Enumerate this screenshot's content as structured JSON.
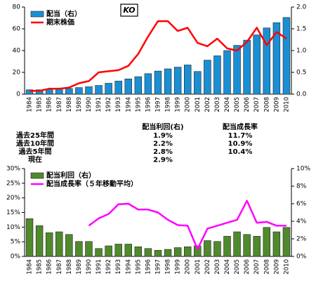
{
  "chart_data": [
    {
      "type": "bar",
      "title": "KO",
      "categories": [
        "1984",
        "1985",
        "1986",
        "1987",
        "1988",
        "1989",
        "1990",
        "1991",
        "1992",
        "1993",
        "1994",
        "1995",
        "1996",
        "1997",
        "1998",
        "1999",
        "2000",
        "2001",
        "2002",
        "2003",
        "2004",
        "2005",
        "2006",
        "2007",
        "2008",
        "2009",
        "2010"
      ],
      "series": [
        {
          "name": "配当（右）",
          "type": "bar",
          "axis": "y2",
          "color": "#1b8fd3",
          "values": [
            0.1,
            0.1,
            0.11,
            0.12,
            0.13,
            0.15,
            0.17,
            0.2,
            0.25,
            0.3,
            0.35,
            0.4,
            0.47,
            0.53,
            0.58,
            0.62,
            0.67,
            0.52,
            0.78,
            0.88,
            1.0,
            1.12,
            1.24,
            1.36,
            1.52,
            1.64,
            1.76
          ]
        },
        {
          "name": "期末株価",
          "type": "line",
          "color": "#ff0000",
          "values": [
            3,
            3,
            5,
            5,
            6,
            10,
            12,
            20,
            21,
            22,
            26,
            37,
            53,
            67,
            67,
            58,
            61,
            47,
            44,
            51,
            42,
            40,
            48,
            61,
            45,
            57,
            51
          ]
        }
      ],
      "ylim": [
        0,
        80
      ],
      "yticks": [
        0,
        20,
        40,
        60,
        80
      ],
      "y2lim": [
        0,
        2
      ],
      "y2ticks": [
        {
          "value": 0,
          "label": "0.0"
        },
        {
          "value": 0.5,
          "label": "0.5"
        },
        {
          "value": 1,
          "label": "1.0"
        },
        {
          "value": 1.5,
          "label": "1.5"
        },
        {
          "value": 2,
          "label": "2.0"
        }
      ],
      "legend": "upper left"
    },
    {
      "type": "bar",
      "categories": [
        "1984",
        "1985",
        "1986",
        "1987",
        "1988",
        "1989",
        "1990",
        "1991",
        "1992",
        "1993",
        "1994",
        "1995",
        "1996",
        "1997",
        "1998",
        "1999",
        "2000",
        "2001",
        "2002",
        "2003",
        "2004",
        "2005",
        "2006",
        "2007",
        "2008",
        "2009",
        "2010"
      ],
      "series": [
        {
          "name": "配当利回（右）",
          "type": "bar",
          "axis": "y2",
          "color": "#4f8a2c",
          "values": [
            4.3,
            3.5,
            2.7,
            2.8,
            2.5,
            1.7,
            1.7,
            0.9,
            1.2,
            1.4,
            1.4,
            1.1,
            0.9,
            0.7,
            0.8,
            1.0,
            1.1,
            1.2,
            1.8,
            1.7,
            2.3,
            2.8,
            2.5,
            2.3,
            3.3,
            2.8,
            3.3
          ]
        },
        {
          "name": "配当成長率（５年移動平均）",
          "type": "line",
          "color": "#ff00ff",
          "values": [
            null,
            null,
            null,
            null,
            null,
            null,
            10.5,
            13,
            14.5,
            17.8,
            18,
            16,
            16,
            15,
            12.5,
            10.7,
            10.5,
            2.5,
            9.5,
            10.5,
            11.5,
            12.5,
            19,
            11.5,
            11.8,
            10.5,
            10.5
          ]
        }
      ],
      "ylim": [
        0,
        30
      ],
      "yticks": [
        {
          "value": 0,
          "label": "0%"
        },
        {
          "value": 5,
          "label": "5%"
        },
        {
          "value": 10,
          "label": "10%"
        },
        {
          "value": 15,
          "label": "15%"
        },
        {
          "value": 20,
          "label": "20%"
        },
        {
          "value": 25,
          "label": "25%"
        },
        {
          "value": 30,
          "label": "30%"
        }
      ],
      "y2lim": [
        0,
        10
      ],
      "y2ticks": [
        {
          "value": 0,
          "label": "0%"
        },
        {
          "value": 2,
          "label": "2%"
        },
        {
          "value": 4,
          "label": "4%"
        },
        {
          "value": 6,
          "label": "6%"
        },
        {
          "value": 8,
          "label": "8%"
        },
        {
          "value": 10,
          "label": "10%"
        }
      ],
      "legend": "upper left"
    }
  ],
  "table": {
    "headers": [
      "配当利回(右)",
      "配当成長率"
    ],
    "rows": [
      [
        "過去25年間",
        "1.9%",
        "11.7%"
      ],
      [
        "過去10年間",
        "2.2%",
        "10.9%"
      ],
      [
        "過去5年間",
        "2.8%",
        "10.4%"
      ],
      [
        "現在",
        "2.9%"
      ]
    ]
  }
}
